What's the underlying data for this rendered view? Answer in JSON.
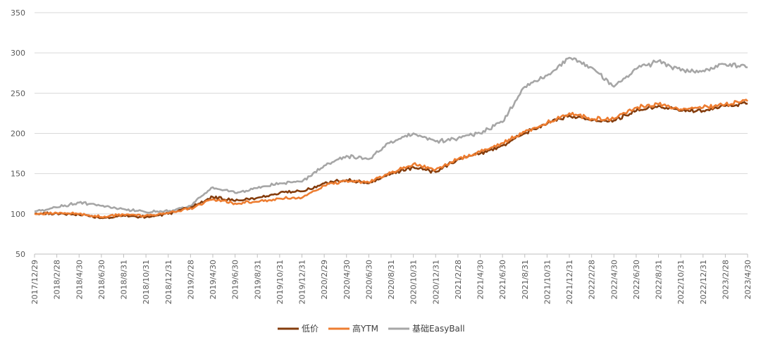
{
  "chart_data": {
    "type": "line",
    "title": "",
    "xlabel": "",
    "ylabel": "",
    "ylim": [
      50,
      350
    ],
    "y_ticks": [
      "50",
      "100",
      "150",
      "200",
      "250",
      "300",
      "350"
    ],
    "grid": "horizontal",
    "legend_position": "bottom",
    "x_ticks": [
      "2017/12/29",
      "2018/2/28",
      "2018/4/30",
      "2018/6/30",
      "2018/8/31",
      "2018/10/31",
      "2018/12/31",
      "2019/2/28",
      "2019/4/30",
      "2019/6/30",
      "2019/8/31",
      "2019/10/31",
      "2019/12/31",
      "2020/2/29",
      "2020/4/30",
      "2020/6/30",
      "2020/8/31",
      "2020/10/31",
      "2020/12/31",
      "2021/2/28",
      "2021/4/30",
      "2021/6/30",
      "2021/8/31",
      "2021/10/31",
      "2021/12/31",
      "2022/2/28",
      "2022/4/30",
      "2022/6/30",
      "2022/8/31",
      "2022/10/31",
      "2022/12/31",
      "2023/2/28",
      "2023/4/30"
    ],
    "series": [
      {
        "name": "低价",
        "color": "#843c0c",
        "values": [
          100,
          101,
          99,
          95,
          98,
          96,
          100,
          108,
          121,
          116,
          120,
          126,
          128,
          138,
          142,
          138,
          150,
          158,
          152,
          168,
          175,
          185,
          200,
          212,
          222,
          216,
          216,
          228,
          234,
          228,
          228,
          234,
          237
        ]
      },
      {
        "name": "高YTM",
        "color": "#ed7d31",
        "values": [
          100,
          101,
          100,
          96,
          99,
          98,
          101,
          107,
          118,
          113,
          115,
          119,
          120,
          135,
          141,
          139,
          151,
          162,
          155,
          168,
          177,
          188,
          202,
          213,
          225,
          218,
          218,
          232,
          236,
          230,
          232,
          236,
          240
        ]
      },
      {
        "name": "基础EasyBall",
        "color": "#a6a6a6",
        "values": [
          103,
          108,
          114,
          110,
          106,
          102,
          103,
          110,
          133,
          126,
          132,
          138,
          140,
          160,
          172,
          168,
          190,
          200,
          190,
          194,
          200,
          214,
          258,
          272,
          294,
          282,
          258,
          280,
          290,
          278,
          278,
          286,
          282
        ]
      }
    ]
  }
}
